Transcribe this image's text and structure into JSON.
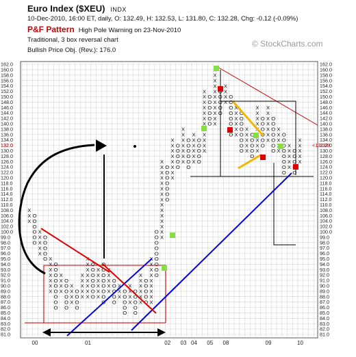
{
  "header": {
    "title": "Euro Index ($XEU)",
    "exchange": "INDX",
    "quote_line": "10-Dec-2010, 16:00 ET, daily, O: 132.49, H: 132.53, L: 131.80, C: 132.28, Chg: -0.12 (-0.09%)",
    "pf_label": "P&F Pattern",
    "pattern": "High Pole Warning on 23-Nov-2010",
    "method": "Traditional, 3 box reversal chart",
    "price_objective": "Bullish Price Obj. (Rev.): 176.0",
    "brand": "© StockCharts.com"
  },
  "chart_data": {
    "type": "point-and-figure",
    "box_size": 2,
    "reversal": 3,
    "y_range": [
      81,
      162
    ],
    "y_ticks": [
      "162.0",
      "160.0",
      "158.0",
      "156.0",
      "154.0",
      "152.0",
      "150.0",
      "148.0",
      "146.0",
      "144.0",
      "142.0",
      "140.0",
      "138.0",
      "136.0",
      "134.0",
      "132.0",
      "130.0",
      "128.0",
      "126.0",
      "124.0",
      "122.0",
      "120.0",
      "118.0",
      "116.0",
      "114.0",
      "112.0",
      "110.0",
      "108.0",
      "106.0",
      "104.0",
      "102.0",
      "100.0",
      "99.0",
      "98.0",
      "97.0",
      "96.0",
      "95.0",
      "94.0",
      "93.0",
      "92.0",
      "91.0",
      "90.0",
      "89.0",
      "88.0",
      "87.0",
      "86.0",
      "85.0",
      "84.0",
      "83.0",
      "82.0",
      "81.0"
    ],
    "x_year_labels": [
      {
        "col": 2,
        "label": "00"
      },
      {
        "col": 12,
        "label": "01"
      },
      {
        "col": 27,
        "label": "02"
      },
      {
        "col": 30,
        "label": "03"
      },
      {
        "col": 32,
        "label": "04"
      },
      {
        "col": 35,
        "label": "05"
      },
      {
        "col": 38,
        "label": "08"
      },
      {
        "col": 46,
        "label": "09"
      },
      {
        "col": 52,
        "label": "10"
      }
    ],
    "last_price_label": "132.28",
    "grid": true
  }
}
